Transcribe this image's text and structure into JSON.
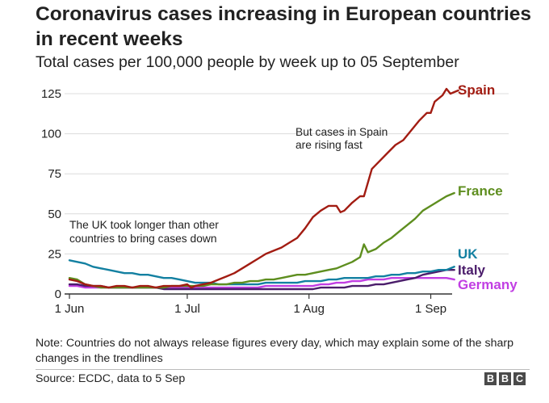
{
  "title": "Coronavirus cases increasing in European countries in recent weeks",
  "subtitle": "Total cases per 100,000 people by week up to 05 September",
  "note": "Note: Countries do not always release figures every day, which may explain some of the sharp changes in the trendlines",
  "source": "Source: ECDC, data to 5 Sep",
  "logo": [
    "B",
    "B",
    "C"
  ],
  "annotations": {
    "spain": [
      "But cases in Spain",
      "are rising fast"
    ],
    "uk": [
      "The UK took longer than other",
      "countries to bring cases down"
    ]
  },
  "chart_data": {
    "type": "line",
    "x_axis": {
      "start": "1 Jun",
      "end": "5 Sep",
      "ticks": [
        {
          "day": 0,
          "label": "1 Jun"
        },
        {
          "day": 30,
          "label": "1 Jul"
        },
        {
          "day": 61,
          "label": "1 Aug"
        },
        {
          "day": 92,
          "label": "1 Sep"
        }
      ]
    },
    "y_axis": {
      "min": 0,
      "max": 130,
      "ticks": [
        0,
        25,
        50,
        75,
        100,
        125
      ],
      "gridlines": true
    },
    "series": [
      {
        "name": "Spain",
        "color": "#a21c12",
        "points": [
          [
            0,
            9
          ],
          [
            2,
            8
          ],
          [
            4,
            6
          ],
          [
            6,
            5
          ],
          [
            8,
            5
          ],
          [
            10,
            4
          ],
          [
            12,
            5
          ],
          [
            14,
            5
          ],
          [
            16,
            4
          ],
          [
            18,
            5
          ],
          [
            20,
            5
          ],
          [
            22,
            4
          ],
          [
            24,
            5
          ],
          [
            26,
            5
          ],
          [
            28,
            5
          ],
          [
            30,
            6
          ],
          [
            31,
            4
          ],
          [
            32,
            5
          ],
          [
            34,
            6
          ],
          [
            36,
            7
          ],
          [
            38,
            9
          ],
          [
            40,
            11
          ],
          [
            42,
            13
          ],
          [
            44,
            16
          ],
          [
            46,
            19
          ],
          [
            48,
            22
          ],
          [
            50,
            25
          ],
          [
            52,
            27
          ],
          [
            54,
            29
          ],
          [
            56,
            32
          ],
          [
            58,
            35
          ],
          [
            60,
            41
          ],
          [
            62,
            48
          ],
          [
            64,
            52
          ],
          [
            66,
            55
          ],
          [
            68,
            55
          ],
          [
            69,
            51
          ],
          [
            70,
            52
          ],
          [
            72,
            57
          ],
          [
            74,
            61
          ],
          [
            75,
            61
          ],
          [
            77,
            78
          ],
          [
            79,
            83
          ],
          [
            81,
            88
          ],
          [
            83,
            93
          ],
          [
            85,
            96
          ],
          [
            87,
            102
          ],
          [
            89,
            108
          ],
          [
            91,
            113
          ],
          [
            92,
            113
          ],
          [
            93,
            120
          ],
          [
            95,
            124
          ],
          [
            96,
            128
          ],
          [
            97,
            125
          ],
          [
            98,
            126
          ],
          [
            99,
            127
          ]
        ]
      },
      {
        "name": "France",
        "color": "#5e8e1f",
        "points": [
          [
            0,
            10
          ],
          [
            2,
            9
          ],
          [
            4,
            6
          ],
          [
            6,
            5
          ],
          [
            8,
            4
          ],
          [
            10,
            4
          ],
          [
            12,
            4
          ],
          [
            14,
            4
          ],
          [
            16,
            4
          ],
          [
            18,
            4
          ],
          [
            20,
            4
          ],
          [
            22,
            4
          ],
          [
            24,
            4
          ],
          [
            26,
            5
          ],
          [
            28,
            5
          ],
          [
            30,
            5
          ],
          [
            32,
            5
          ],
          [
            34,
            5
          ],
          [
            36,
            6
          ],
          [
            38,
            6
          ],
          [
            40,
            6
          ],
          [
            42,
            7
          ],
          [
            44,
            7
          ],
          [
            46,
            8
          ],
          [
            48,
            8
          ],
          [
            50,
            9
          ],
          [
            52,
            9
          ],
          [
            54,
            10
          ],
          [
            56,
            11
          ],
          [
            58,
            12
          ],
          [
            60,
            12
          ],
          [
            62,
            13
          ],
          [
            64,
            14
          ],
          [
            66,
            15
          ],
          [
            68,
            16
          ],
          [
            70,
            18
          ],
          [
            72,
            20
          ],
          [
            74,
            23
          ],
          [
            75,
            31
          ],
          [
            76,
            26
          ],
          [
            78,
            28
          ],
          [
            80,
            32
          ],
          [
            82,
            35
          ],
          [
            84,
            39
          ],
          [
            86,
            43
          ],
          [
            88,
            47
          ],
          [
            90,
            52
          ],
          [
            92,
            55
          ],
          [
            94,
            58
          ],
          [
            96,
            61
          ],
          [
            98,
            63
          ]
        ]
      },
      {
        "name": "UK",
        "color": "#1380a1",
        "points": [
          [
            0,
            21
          ],
          [
            2,
            20
          ],
          [
            4,
            19
          ],
          [
            6,
            17
          ],
          [
            8,
            16
          ],
          [
            10,
            15
          ],
          [
            12,
            14
          ],
          [
            14,
            13
          ],
          [
            16,
            13
          ],
          [
            18,
            12
          ],
          [
            20,
            12
          ],
          [
            22,
            11
          ],
          [
            24,
            10
          ],
          [
            26,
            10
          ],
          [
            28,
            9
          ],
          [
            30,
            8
          ],
          [
            32,
            7
          ],
          [
            34,
            7
          ],
          [
            36,
            7
          ],
          [
            38,
            6
          ],
          [
            40,
            6
          ],
          [
            42,
            6
          ],
          [
            44,
            6
          ],
          [
            46,
            6
          ],
          [
            48,
            6
          ],
          [
            50,
            7
          ],
          [
            52,
            7
          ],
          [
            54,
            7
          ],
          [
            56,
            7
          ],
          [
            58,
            7
          ],
          [
            60,
            8
          ],
          [
            62,
            8
          ],
          [
            64,
            8
          ],
          [
            66,
            9
          ],
          [
            68,
            9
          ],
          [
            70,
            10
          ],
          [
            72,
            10
          ],
          [
            74,
            10
          ],
          [
            76,
            10
          ],
          [
            78,
            11
          ],
          [
            80,
            11
          ],
          [
            82,
            12
          ],
          [
            84,
            12
          ],
          [
            86,
            13
          ],
          [
            88,
            13
          ],
          [
            90,
            14
          ],
          [
            92,
            14
          ],
          [
            94,
            15
          ],
          [
            96,
            15
          ],
          [
            98,
            17
          ]
        ]
      },
      {
        "name": "Italy",
        "color": "#4b1d6b",
        "points": [
          [
            0,
            6
          ],
          [
            2,
            6
          ],
          [
            4,
            5
          ],
          [
            6,
            5
          ],
          [
            8,
            5
          ],
          [
            10,
            4
          ],
          [
            12,
            4
          ],
          [
            14,
            4
          ],
          [
            16,
            4
          ],
          [
            18,
            4
          ],
          [
            20,
            4
          ],
          [
            22,
            4
          ],
          [
            24,
            3
          ],
          [
            26,
            3
          ],
          [
            28,
            3
          ],
          [
            30,
            3
          ],
          [
            32,
            3
          ],
          [
            34,
            3
          ],
          [
            36,
            3
          ],
          [
            38,
            3
          ],
          [
            40,
            3
          ],
          [
            42,
            3
          ],
          [
            44,
            3
          ],
          [
            46,
            3
          ],
          [
            48,
            3
          ],
          [
            50,
            3
          ],
          [
            52,
            3
          ],
          [
            54,
            3
          ],
          [
            56,
            3
          ],
          [
            58,
            3
          ],
          [
            60,
            3
          ],
          [
            62,
            3
          ],
          [
            64,
            4
          ],
          [
            66,
            4
          ],
          [
            68,
            4
          ],
          [
            70,
            4
          ],
          [
            72,
            5
          ],
          [
            74,
            5
          ],
          [
            76,
            5
          ],
          [
            78,
            6
          ],
          [
            80,
            6
          ],
          [
            82,
            7
          ],
          [
            84,
            8
          ],
          [
            86,
            9
          ],
          [
            88,
            10
          ],
          [
            90,
            12
          ],
          [
            92,
            13
          ],
          [
            94,
            14
          ],
          [
            96,
            15
          ],
          [
            98,
            15
          ]
        ]
      },
      {
        "name": "Germany",
        "color": "#c13ee3",
        "points": [
          [
            0,
            5
          ],
          [
            2,
            5
          ],
          [
            4,
            4
          ],
          [
            6,
            4
          ],
          [
            8,
            4
          ],
          [
            10,
            4
          ],
          [
            12,
            4
          ],
          [
            14,
            4
          ],
          [
            16,
            4
          ],
          [
            18,
            4
          ],
          [
            20,
            4
          ],
          [
            22,
            4
          ],
          [
            24,
            4
          ],
          [
            26,
            4
          ],
          [
            28,
            4
          ],
          [
            30,
            4
          ],
          [
            32,
            4
          ],
          [
            34,
            4
          ],
          [
            36,
            4
          ],
          [
            38,
            4
          ],
          [
            40,
            4
          ],
          [
            42,
            4
          ],
          [
            44,
            4
          ],
          [
            46,
            4
          ],
          [
            48,
            4
          ],
          [
            50,
            5
          ],
          [
            52,
            5
          ],
          [
            54,
            5
          ],
          [
            56,
            5
          ],
          [
            58,
            5
          ],
          [
            60,
            5
          ],
          [
            62,
            5
          ],
          [
            64,
            6
          ],
          [
            66,
            6
          ],
          [
            68,
            7
          ],
          [
            70,
            7
          ],
          [
            72,
            8
          ],
          [
            74,
            8
          ],
          [
            76,
            9
          ],
          [
            78,
            9
          ],
          [
            80,
            9
          ],
          [
            82,
            10
          ],
          [
            84,
            10
          ],
          [
            86,
            10
          ],
          [
            88,
            10
          ],
          [
            90,
            10
          ],
          [
            92,
            10
          ],
          [
            94,
            10
          ],
          [
            96,
            10
          ],
          [
            98,
            9
          ]
        ]
      }
    ]
  }
}
